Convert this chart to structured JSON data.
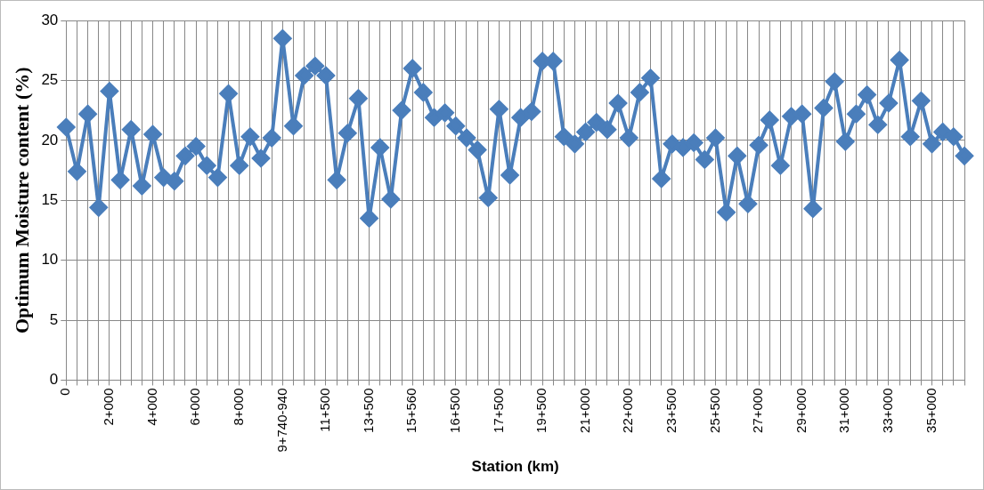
{
  "chart_data": {
    "type": "line",
    "xlabel": "Station (km)",
    "ylabel": "Optimum Moisture content (%)",
    "categories": [
      "0",
      null,
      null,
      null,
      "2+000",
      null,
      null,
      null,
      "4+000",
      null,
      null,
      null,
      "6+000",
      null,
      null,
      null,
      "8+000",
      null,
      null,
      null,
      "9+740-940",
      null,
      null,
      null,
      "11+500",
      null,
      null,
      null,
      "13+500",
      null,
      null,
      null,
      "15+560",
      null,
      null,
      null,
      "16+500",
      null,
      null,
      null,
      "17+500",
      null,
      null,
      null,
      "19+500",
      null,
      null,
      null,
      "21+000",
      null,
      null,
      null,
      "22+000",
      null,
      null,
      null,
      "23+500",
      null,
      null,
      null,
      "25+500",
      null,
      null,
      null,
      "27+000",
      null,
      null,
      null,
      "29+000",
      null,
      null,
      null,
      "31+000",
      null,
      null,
      null,
      "33+000",
      null,
      null,
      null,
      "35+000",
      null,
      null,
      null
    ],
    "series": [
      {
        "color": "#4a7ebb",
        "values": [
          21.1,
          17.4,
          22.2,
          14.4,
          24.1,
          16.7,
          20.9,
          16.2,
          20.5,
          16.9,
          16.6,
          18.7,
          19.5,
          17.9,
          16.9,
          23.9,
          17.9,
          20.3,
          18.5,
          20.2,
          28.5,
          21.2,
          25.4,
          26.2,
          25.4,
          16.7,
          20.6,
          23.5,
          13.5,
          19.4,
          15.1,
          22.5,
          26.0,
          24.0,
          21.9,
          22.3,
          21.2,
          20.2,
          19.2,
          15.2,
          22.6,
          17.1,
          21.9,
          22.4,
          26.6,
          26.6,
          20.3,
          19.7,
          20.7,
          21.5,
          20.9,
          23.1,
          20.2,
          24.0,
          25.2,
          16.8,
          19.7,
          19.4,
          19.8,
          18.4,
          20.2,
          14.0,
          18.7,
          14.7,
          19.6,
          21.7,
          17.9,
          22.0,
          22.2,
          14.3,
          22.7,
          24.9,
          19.9,
          22.2,
          23.8,
          21.3,
          23.1,
          26.7,
          20.3,
          23.3,
          19.7,
          20.7,
          20.3,
          18.7
        ]
      }
    ],
    "ylim": [
      0,
      30
    ],
    "yticks": [
      0,
      5,
      10,
      15,
      20,
      25,
      30
    ],
    "grid": true,
    "legend": false,
    "marker": "diamond",
    "line_style": "solid"
  }
}
